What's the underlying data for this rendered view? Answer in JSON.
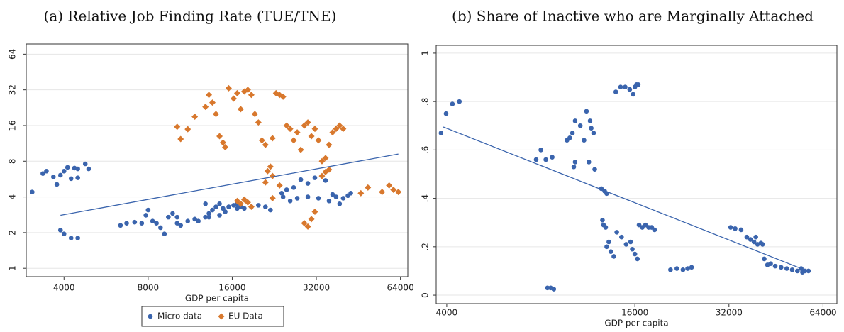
{
  "chart_data": [
    {
      "type": "scatter",
      "title": "(a) Relative Job Finding Rate (TUE/TNE)",
      "x_label": "GDP per capita",
      "xlog": true,
      "ylog": true,
      "grid": true,
      "legend": "bottom",
      "xlim": [
        2930,
        68000
      ],
      "ylim": [
        0.85,
        78
      ],
      "xticks": [
        4000,
        8000,
        16000,
        32000,
        64000
      ],
      "yticks": [
        1,
        2,
        4,
        8,
        16,
        32,
        64
      ],
      "series": [
        {
          "name": "Micro data",
          "color": "#3a64ad",
          "marker": "circle",
          "x": [
            3077,
            3360,
            3460,
            3665,
            3770,
            3885,
            4000,
            4117,
            4240,
            4360,
            4480,
            4480,
            4765,
            4900,
            3885,
            4000,
            4240,
            4480,
            6370,
            6700,
            7160,
            7590,
            7850,
            8000,
            8300,
            8570,
            8860,
            9150,
            9450,
            9790,
            10160,
            10460,
            11090,
            11750,
            12100,
            12830,
            13200,
            13590,
            13990,
            14410,
            14830,
            15100,
            15540,
            16190,
            16670,
            17160,
            17670,
            18730,
            19850,
            21040,
            21920,
            13200,
            14410,
            12830,
            16670,
            10160,
            24050,
            25050,
            26550,
            28150,
            29840,
            31620,
            33520,
            27340,
            29840,
            32560,
            35530,
            37660,
            39920,
            41500,
            38770,
            36580,
            25790,
            24330,
            34510,
            42500
          ],
          "values": [
            4.4,
            6.3,
            6.6,
            5.9,
            5.1,
            6.1,
            6.6,
            7.1,
            5.7,
            7.0,
            6.9,
            5.8,
            7.6,
            6.9,
            2.1,
            1.95,
            1.8,
            1.8,
            2.3,
            2.4,
            2.45,
            2.4,
            2.8,
            3.1,
            2.5,
            2.4,
            2.2,
            1.95,
            2.7,
            2.9,
            2.4,
            2.3,
            2.5,
            2.6,
            2.5,
            2.7,
            2.9,
            3.1,
            3.3,
            3.5,
            3.2,
            3.0,
            3.3,
            3.4,
            3.2,
            3.3,
            3.2,
            3.3,
            3.4,
            3.3,
            3.1,
            2.7,
            2.8,
            3.5,
            3.5,
            2.7,
            4.3,
            4.6,
            4.8,
            5.6,
            5.2,
            5.8,
            6.0,
            3.9,
            4.0,
            3.9,
            3.7,
            4.0,
            3.9,
            4.1,
            3.5,
            4.2,
            3.7,
            4.0,
            5.5,
            4.3
          ]
        },
        {
          "name": "EU Data",
          "color": "#d8782d",
          "marker": "diamond",
          "x": [
            10160,
            10460,
            11090,
            11750,
            12830,
            13200,
            13590,
            13990,
            14410,
            14830,
            15100,
            15540,
            16190,
            16670,
            17160,
            17670,
            18190,
            18730,
            19280,
            19850,
            20440,
            21040,
            21410,
            21920,
            22300,
            22960,
            23640,
            24330,
            25050,
            25790,
            26550,
            27340,
            28150,
            28980,
            29840,
            30720,
            31620,
            32560,
            33520,
            34510,
            35530,
            36580,
            37660,
            38770,
            39920,
            33520,
            34510,
            35530,
            28980,
            29840,
            30720,
            31620,
            16670,
            17160,
            17670,
            18190,
            18730,
            22300,
            23640,
            21040,
            22300,
            46180,
            48960,
            55000,
            58300,
            60400,
            62900
          ],
          "values": [
            15.6,
            12.3,
            14.9,
            19,
            23,
            29,
            25,
            20,
            13,
            11.5,
            10.5,
            33,
            27,
            30,
            22,
            31,
            32,
            29,
            20,
            17,
            12,
            11,
            6.6,
            7.2,
            12.5,
            30,
            29,
            28,
            16,
            15,
            12,
            14,
            10,
            16,
            17,
            13,
            15,
            12,
            8,
            8.5,
            11,
            14,
            15,
            16,
            15,
            6,
            6.5,
            6.8,
            2.4,
            2.25,
            2.6,
            3.0,
            3.7,
            3.5,
            3.8,
            3.6,
            3.3,
            3.9,
            5.0,
            5.3,
            6.0,
            4.3,
            4.8,
            4.4,
            5.0,
            4.6,
            4.4
          ]
        },
        {
          "mode": "line",
          "color": "#3a64ad",
          "x": [
            3885,
            62900
          ],
          "values": [
            2.8,
            9.2
          ]
        }
      ]
    },
    {
      "type": "scatter",
      "title": "(b) Share of Inactive who are Marginally Attached",
      "x_label": "GDP per capita",
      "xlog": true,
      "ylog": false,
      "grid": true,
      "xlim": [
        3700,
        70900
      ],
      "ylim": [
        -0.035,
        1.032
      ],
      "xticks": [
        4000,
        16000,
        32000,
        64000
      ],
      "yticks": [
        0,
        {
          "value": 0.2,
          "label": ".2"
        },
        {
          "value": 0.4,
          "label": ".4"
        },
        {
          "value": 0.6,
          "label": ".6"
        },
        {
          "value": 0.8,
          "label": ".8"
        },
        1
      ],
      "series": [
        {
          "color": "#3a64ad",
          "marker": "circle",
          "x": [
            3835,
            3980,
            4170,
            4390,
            7730,
            8000,
            8300,
            8700,
            8400,
            8600,
            8800,
            9700,
            9900,
            10100,
            10300,
            10300,
            10200,
            10700,
            11000,
            11200,
            11500,
            11600,
            11800,
            11400,
            11900,
            12500,
            12800,
            13000,
            12600,
            12900,
            13200,
            13400,
            13700,
            13000,
            12700,
            14000,
            14500,
            15000,
            15700,
            16000,
            16300,
            15500,
            13900,
            14400,
            14900,
            15400,
            15800,
            16000,
            16200,
            16400,
            16500,
            16900,
            17300,
            17700,
            18100,
            18500,
            20800,
            21800,
            22800,
            23600,
            24300,
            32400,
            33500,
            35000,
            36500,
            37500,
            38500,
            39500,
            40500,
            41000,
            39000,
            41500,
            42500,
            43500,
            45000,
            47000,
            49000,
            51000,
            53000,
            54500,
            56000,
            57500,
            55000
          ],
          "values": [
            0.67,
            0.75,
            0.79,
            0.8,
            0.56,
            0.6,
            0.56,
            0.57,
            0.03,
            0.03,
            0.025,
            0.64,
            0.65,
            0.67,
            0.72,
            0.55,
            0.53,
            0.7,
            0.64,
            0.76,
            0.72,
            0.69,
            0.67,
            0.55,
            0.52,
            0.44,
            0.43,
            0.42,
            0.31,
            0.28,
            0.22,
            0.18,
            0.16,
            0.2,
            0.29,
            0.26,
            0.24,
            0.21,
            0.19,
            0.17,
            0.15,
            0.22,
            0.84,
            0.86,
            0.86,
            0.85,
            0.83,
            0.86,
            0.87,
            0.87,
            0.29,
            0.28,
            0.29,
            0.28,
            0.28,
            0.27,
            0.105,
            0.11,
            0.105,
            0.11,
            0.115,
            0.28,
            0.275,
            0.27,
            0.24,
            0.23,
            0.22,
            0.21,
            0.215,
            0.21,
            0.24,
            0.15,
            0.125,
            0.13,
            0.12,
            0.115,
            0.11,
            0.105,
            0.1,
            0.11,
            0.1,
            0.1,
            0.095
          ]
        },
        {
          "mode": "line",
          "color": "#3a64ad",
          "x": [
            3900,
            57000
          ],
          "values": [
            0.695,
            0.1
          ]
        }
      ]
    }
  ]
}
